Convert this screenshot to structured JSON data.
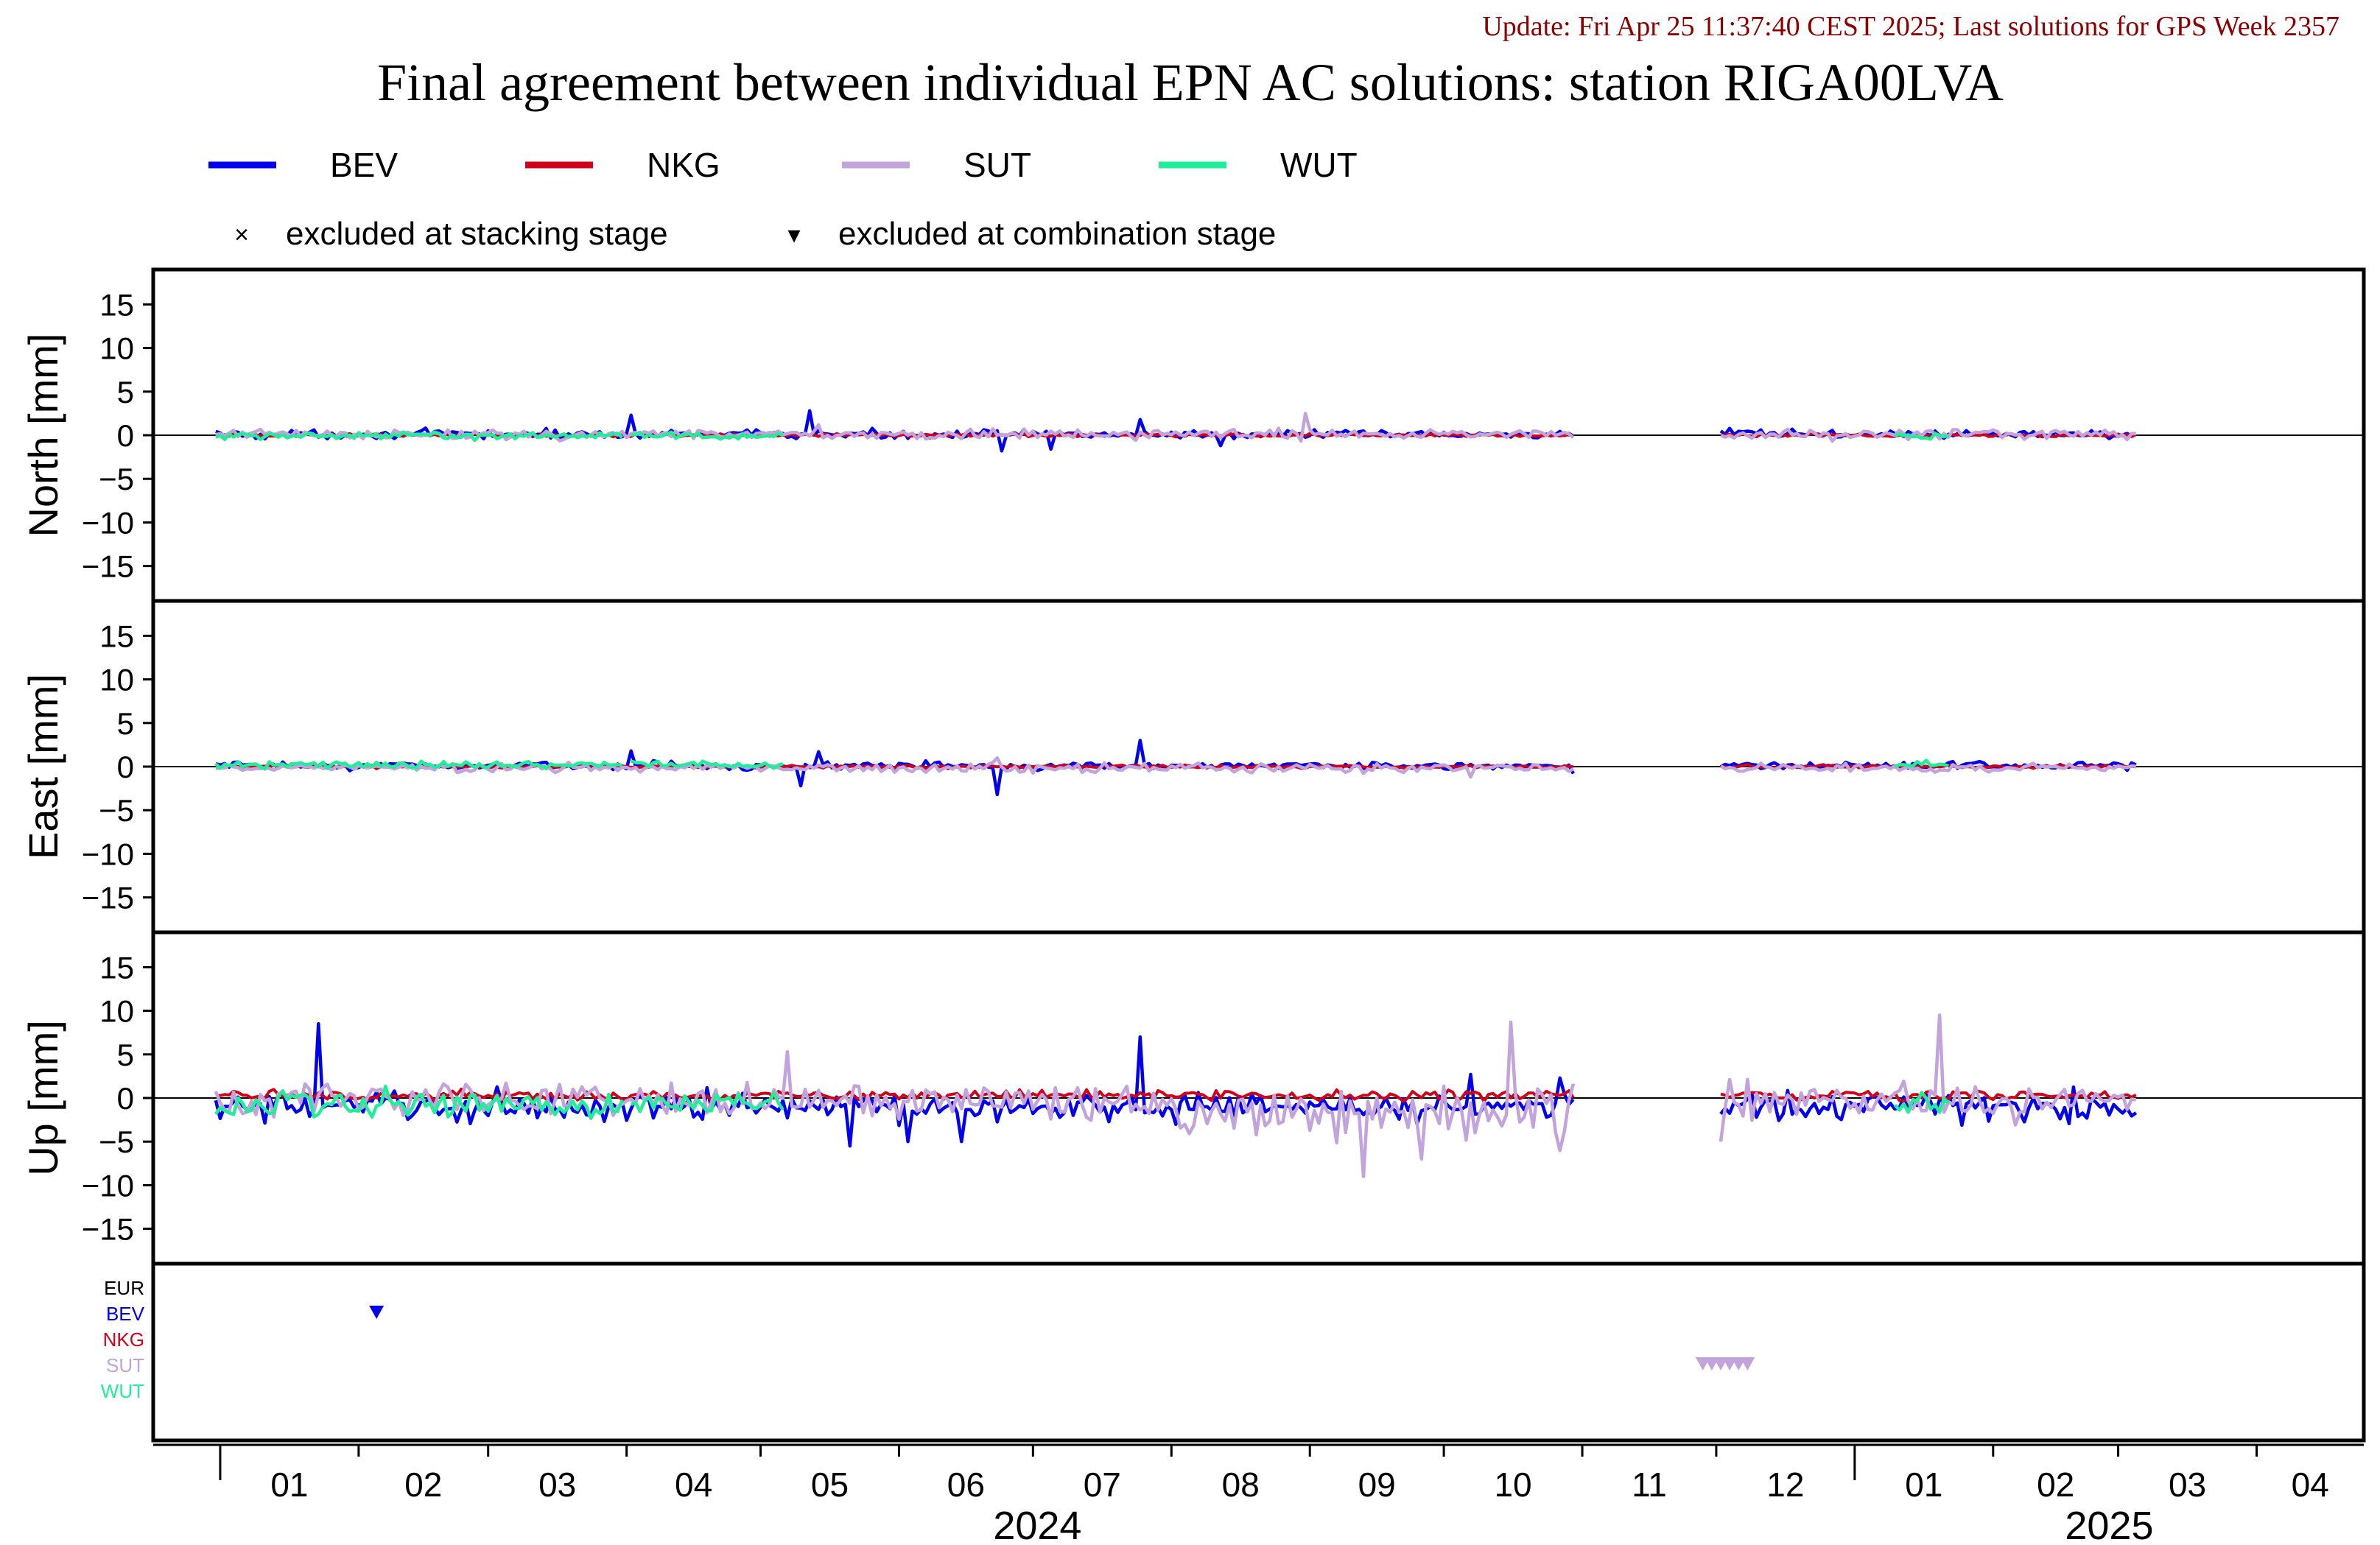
{
  "header": {
    "update_line": "Update: Fri Apr 25 11:37:40 CEST 2025; Last solutions for GPS Week 2357",
    "title": "Final agreement between individual EPN AC solutions: station RIGA00LVA"
  },
  "legend": {
    "series": [
      {
        "label": "BEV",
        "color": "#0000ee"
      },
      {
        "label": "NKG",
        "color": "#d0021b"
      },
      {
        "label": "SUT",
        "color": "#c3a3dc"
      },
      {
        "label": "WUT",
        "color": "#22ee99"
      }
    ],
    "markers": [
      {
        "symbol": "×",
        "label": "excluded at stacking stage"
      },
      {
        "symbol": "▾",
        "label": "excluded at combination stage"
      }
    ]
  },
  "chart_data": {
    "type": "line",
    "grid": false,
    "x_range": [
      "2023-12-17",
      "2025-04-25"
    ],
    "x_month_ticks": [
      "01",
      "02",
      "03",
      "04",
      "05",
      "06",
      "07",
      "08",
      "09",
      "10",
      "11",
      "12",
      "01",
      "02",
      "03",
      "04"
    ],
    "x_year_labels": [
      "2024",
      "2025"
    ],
    "ylim": [
      -19,
      19
    ],
    "yticks": [
      15,
      10,
      5,
      0,
      -5,
      -10,
      -15
    ],
    "panels": [
      {
        "ylabel": "North [mm]",
        "id": "north"
      },
      {
        "ylabel": "East [mm]",
        "id": "east"
      },
      {
        "ylabel": "Up [mm]",
        "id": "up"
      }
    ],
    "data_periods": [
      [
        "2023-12-31",
        "2024-10-30"
      ],
      [
        "2024-12-02",
        "2025-03-05"
      ]
    ],
    "series": [
      {
        "name": "BEV",
        "color": "#0000ee",
        "north_spikes": [
          [
            "2024-04-02",
            2.3
          ],
          [
            "2024-05-12",
            2.8
          ],
          [
            "2024-06-24",
            -1.8
          ],
          [
            "2024-07-05",
            -1.6
          ],
          [
            "2024-07-25",
            1.8
          ],
          [
            "2024-08-12",
            -1.2
          ]
        ],
        "east_spikes": [
          [
            "2024-04-02",
            1.8
          ],
          [
            "2024-05-10",
            -2.2
          ],
          [
            "2024-05-14",
            1.7
          ],
          [
            "2024-06-23",
            -3.2
          ],
          [
            "2024-07-25",
            3.0
          ],
          [
            "2024-10-30",
            -0.8
          ]
        ],
        "up_spikes": [
          [
            "2024-01-23",
            8.5
          ],
          [
            "2024-05-21",
            -5.5
          ],
          [
            "2024-06-03",
            -5.0
          ],
          [
            "2024-06-15",
            -5.0
          ],
          [
            "2024-07-25",
            7.0
          ],
          [
            "2024-10-07",
            2.7
          ],
          [
            "2024-10-27",
            2.3
          ]
        ]
      },
      {
        "name": "NKG",
        "color": "#d0021b"
      },
      {
        "name": "SUT",
        "color": "#c3a3dc",
        "north_spikes": [
          [
            "2024-08-31",
            2.5
          ],
          [
            "2024-05-14",
            1.2
          ]
        ],
        "east_spikes": [
          [
            "2024-06-23",
            1.0
          ],
          [
            "2024-10-07",
            -1.2
          ]
        ],
        "up_spikes": [
          [
            "2024-05-07",
            5.3
          ],
          [
            "2024-09-13",
            -9.0
          ],
          [
            "2024-10-16",
            8.7
          ],
          [
            "2025-01-20",
            9.5
          ],
          [
            "2024-12-02",
            -5.0
          ],
          [
            "2024-09-26",
            -7.0
          ]
        ]
      },
      {
        "name": "WUT",
        "color": "#22ee99"
      }
    ],
    "exclusion_rows": [
      "EUR",
      "BEV",
      "NKG",
      "SUT",
      "WUT"
    ],
    "exclusion_row_colors": [
      "#000000",
      "#0000ee",
      "#d0021b",
      "#c3a3dc",
      "#22ee99"
    ],
    "exclusions": [
      {
        "ac": "BEV",
        "dates": [
          "2024-02-05"
        ]
      },
      {
        "ac": "SUT",
        "dates": [
          "2024-11-28",
          "2024-11-30",
          "2024-12-02",
          "2024-12-04",
          "2024-12-06",
          "2024-12-08"
        ]
      }
    ]
  }
}
